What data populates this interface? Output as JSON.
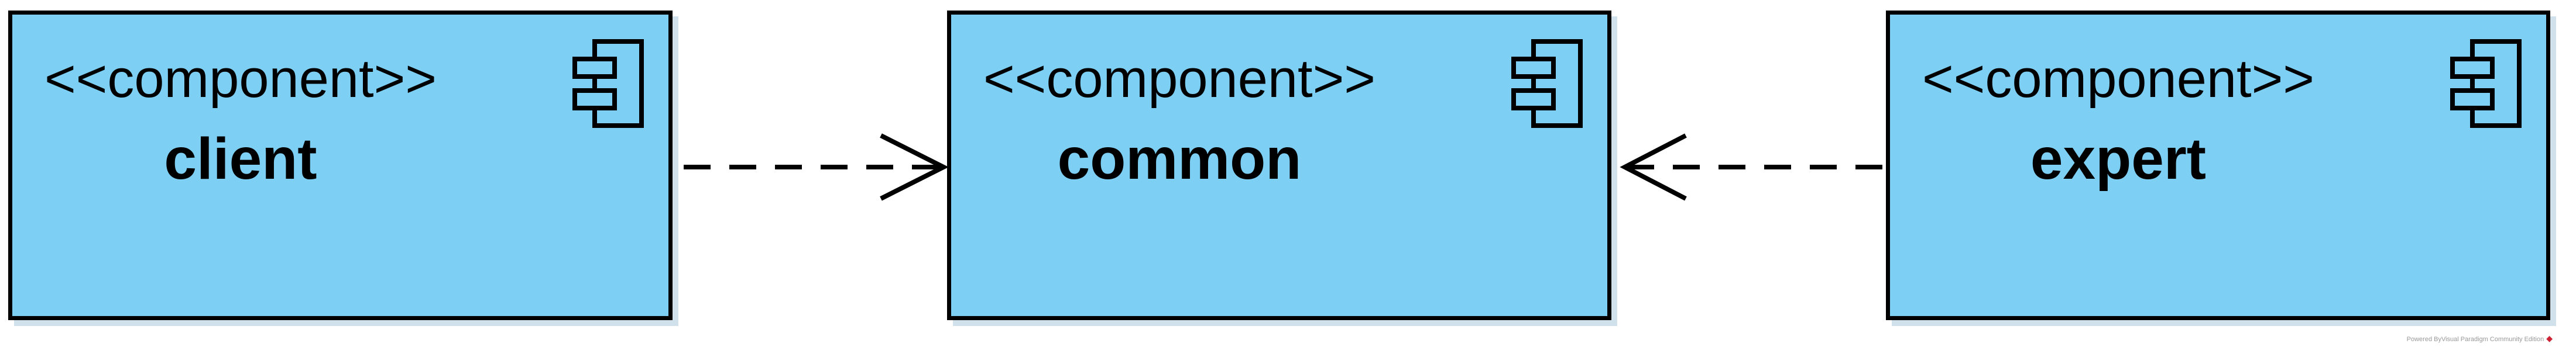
{
  "diagram": {
    "components": [
      {
        "id": "client",
        "stereotype": "<<component>>",
        "name": "client"
      },
      {
        "id": "common",
        "stereotype": "<<component>>",
        "name": "common"
      },
      {
        "id": "expert",
        "stereotype": "<<component>>",
        "name": "expert"
      }
    ],
    "dependencies": [
      {
        "from": "client",
        "to": "common",
        "style": "dashed-open-arrow"
      },
      {
        "from": "expert",
        "to": "common",
        "style": "dashed-open-arrow"
      }
    ],
    "colors": {
      "component_fill": "#7ecff4",
      "stroke": "#000000"
    },
    "footer": {
      "text": "Powered ByVisual Paradigm Community Edition",
      "icon": "vp-logo-icon"
    }
  }
}
